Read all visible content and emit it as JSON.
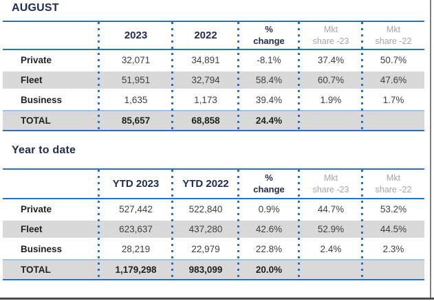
{
  "colors": {
    "navy": "#1F2A55",
    "blue_rule": "#2272C8",
    "dotted_separator": "#2170C9",
    "total_top_rule": "#9DC3E6",
    "row_stripe_gray": "#D9D9D9",
    "muted_header_gray": "#A6A6A6"
  },
  "august_table": {
    "title": "AUGUST",
    "headers": {
      "year_current": "2023",
      "year_prior": "2022",
      "pct_change_line1": "%",
      "pct_change_line2": "change",
      "mkt_current_line1": "Mkt",
      "mkt_current_line2": "share -23",
      "mkt_prior_line1": "Mkt",
      "mkt_prior_line2": "share -22"
    },
    "rows": [
      {
        "label": "Private",
        "current": "32,071",
        "prior": "34,891",
        "pct_change": "-8.1%",
        "mkt_current": "37.4%",
        "mkt_prior": "50.7%"
      },
      {
        "label": "Fleet",
        "current": "51,951",
        "prior": "32,794",
        "pct_change": "58.4%",
        "mkt_current": "60.7%",
        "mkt_prior": "47.6%"
      },
      {
        "label": "Business",
        "current": "1,635",
        "prior": "1,173",
        "pct_change": "39.4%",
        "mkt_current": "1.9%",
        "mkt_prior": "1.7%"
      }
    ],
    "total": {
      "label": "TOTAL",
      "current": "85,657",
      "prior": "68,858",
      "pct_change": "24.4%"
    }
  },
  "ytd_table": {
    "title": "Year to date",
    "headers": {
      "year_current": "YTD 2023",
      "year_prior": "YTD 2022",
      "pct_change_line1": "%",
      "pct_change_line2": "change",
      "mkt_current_line1": "Mkt",
      "mkt_current_line2": "share -23",
      "mkt_prior_line1": "Mkt",
      "mkt_prior_line2": "share -22"
    },
    "rows": [
      {
        "label": "Private",
        "current": "527,442",
        "prior": "522,840",
        "pct_change": "0.9%",
        "mkt_current": "44.7%",
        "mkt_prior": "53.2%"
      },
      {
        "label": "Fleet",
        "current": "623,637",
        "prior": "437,280",
        "pct_change": "42.6%",
        "mkt_current": "52.9%",
        "mkt_prior": "44.5%"
      },
      {
        "label": "Business",
        "current": "28,219",
        "prior": "22,979",
        "pct_change": "22.8%",
        "mkt_current": "2.4%",
        "mkt_prior": "2.3%"
      }
    ],
    "total": {
      "label": "TOTAL",
      "current": "1,179,298",
      "prior": "983,099",
      "pct_change": "20.0%"
    }
  }
}
